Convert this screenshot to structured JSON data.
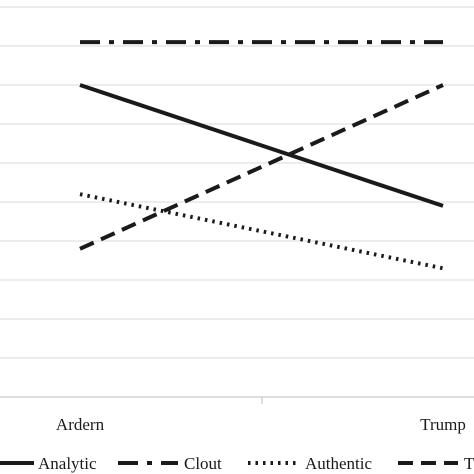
{
  "chart_data": {
    "type": "line",
    "title": "",
    "xlabel": "",
    "ylabel": "",
    "categories": [
      "Ardern",
      "Trump"
    ],
    "ylim": [
      0,
      100
    ],
    "grid": true,
    "legend": "bottom",
    "series": [
      {
        "name": "Analytic",
        "values": [
          80,
          49
        ],
        "dash": "solid",
        "color": "#1a1a1a"
      },
      {
        "name": "Clout",
        "values": [
          91,
          91
        ],
        "dash": "dashdot",
        "color": "#1a1a1a"
      },
      {
        "name": "Authentic",
        "values": [
          52,
          33
        ],
        "dash": "dotted",
        "color": "#1a1a1a"
      },
      {
        "name": "T",
        "values": [
          38,
          80
        ],
        "dash": "dashed",
        "color": "#1a1a1a"
      }
    ]
  }
}
